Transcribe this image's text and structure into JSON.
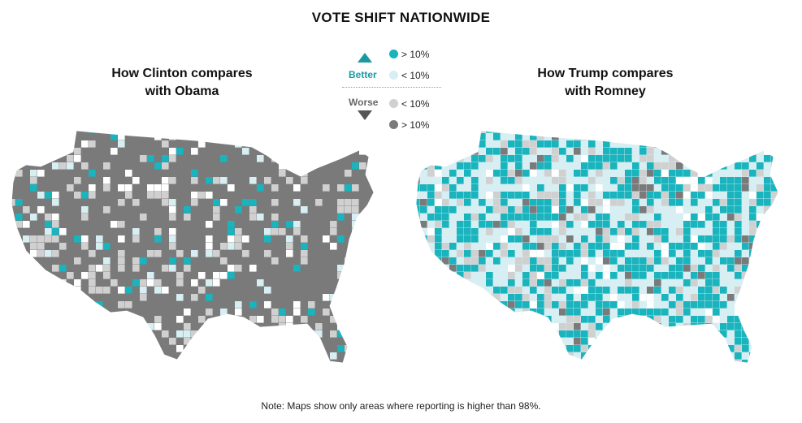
{
  "title": "VOTE SHIFT NATIONWIDE",
  "maps": {
    "left": {
      "title_line1": "How Clinton compares",
      "title_line2": "with Obama"
    },
    "right": {
      "title_line1": "How Trump compares",
      "title_line2": "with Romney"
    }
  },
  "legend": {
    "better_label": "Better",
    "worse_label": "Worse",
    "better_items": [
      {
        "label": "> 10%",
        "color": "#19b4bd"
      },
      {
        "label": "< 10%",
        "color": "#d7eef2"
      }
    ],
    "worse_items": [
      {
        "label": "< 10%",
        "color": "#d0d0d0"
      },
      {
        "label": "> 10%",
        "color": "#7a7a7a"
      }
    ]
  },
  "note": "Note: Maps show only areas where reporting is higher than 98%.",
  "colors": {
    "better_strong": "#19b4bd",
    "better_weak": "#d7eef2",
    "worse_weak": "#d0d0d0",
    "worse_strong": "#7a7a7a",
    "no_data": "#ffffff"
  }
}
